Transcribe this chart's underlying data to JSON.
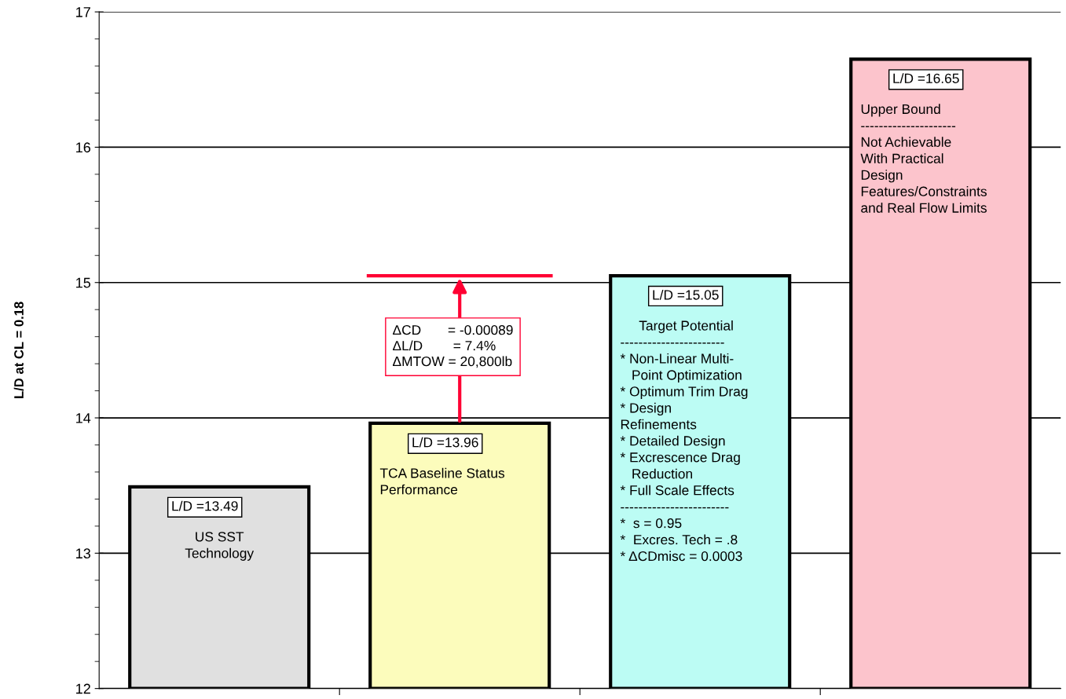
{
  "chart_data": {
    "type": "bar",
    "ylabel": "L/D at CL = 0.18",
    "categories": [
      null,
      null,
      null,
      null
    ],
    "values": [
      13.49,
      13.96,
      15.05,
      16.65
    ],
    "colors": [
      "#e0e0e0",
      "#fcfcbc",
      "#bcfcf4",
      "#fcc4cc"
    ],
    "value_labels": [
      "L/D =13.49",
      "L/D =13.96",
      "L/D =15.05",
      "L/D =16.65"
    ],
    "ylim": [
      12,
      17
    ],
    "yticks": [
      12,
      13,
      14,
      15,
      16,
      17
    ],
    "grid": "y",
    "ref_lines": [
      {
        "axis": "y",
        "value": 15.05,
        "color": "#ff0033"
      }
    ],
    "annotations": [
      "US SST\nTechnology",
      "TCA Baseline Status\nPerformance",
      "     Target Potential\n-----------------------\n* Non-Linear Multi-\n   Point Optimization\n* Optimum Trim Drag\n* Design\nRefinements\n* Detailed Design\n* Excrescence Drag\n   Reduction\n* Full Scale Effects\n------------------------\n*  s = 0.95\n*  Excres. Tech = .8\n* ΔCDmisc = 0.0003",
      "Upper Bound\n---------------------\nNot Achievable\nWith Practical\nDesign\nFeatures/Constraints\nand Real Flow Limits",
      "ΔCD       = -0.00089\nΔL/D        = 7.4%\nΔMTOW = 20,800lb"
    ]
  }
}
